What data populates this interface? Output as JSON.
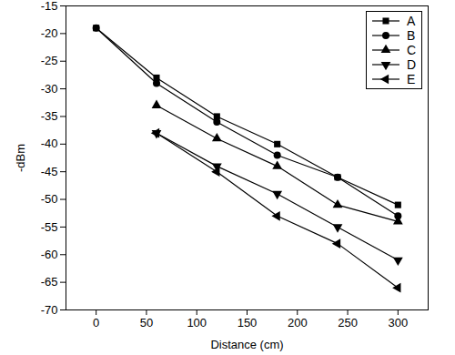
{
  "chart_data": {
    "type": "line",
    "x_label": "Distance (cm)",
    "y_label": "-dBm",
    "x": [
      0,
      60,
      120,
      180,
      240,
      300
    ],
    "series": [
      {
        "name": "A",
        "color": "#000000",
        "marker": "square",
        "values": [
          -19,
          -28,
          -35,
          -40,
          -46,
          -51
        ]
      },
      {
        "name": "B",
        "color": "#000000",
        "marker": "circle",
        "values": [
          -19,
          -29,
          -36,
          -42,
          -46,
          -53
        ]
      },
      {
        "name": "C",
        "color": "#000000",
        "marker": "triangle-up",
        "values": [
          null,
          -33,
          -39,
          -44,
          -51,
          -54
        ]
      },
      {
        "name": "D",
        "color": "#000000",
        "marker": "triangle-down",
        "values": [
          null,
          -38,
          -44,
          -49,
          -55,
          -61
        ]
      },
      {
        "name": "E",
        "color": "#000000",
        "marker": "triangle-left",
        "values": [
          null,
          -38,
          -45,
          -53,
          -58,
          -66
        ]
      }
    ],
    "xlim": [
      -30,
      330
    ],
    "xticks": [
      0,
      50,
      100,
      150,
      200,
      250,
      300
    ],
    "ylim": [
      -70,
      -15
    ],
    "yticks": [
      -70,
      -65,
      -60,
      -55,
      -50,
      -45,
      -40,
      -35,
      -30,
      -25,
      -20,
      -15
    ],
    "grid": false,
    "legend": "upper right"
  }
}
